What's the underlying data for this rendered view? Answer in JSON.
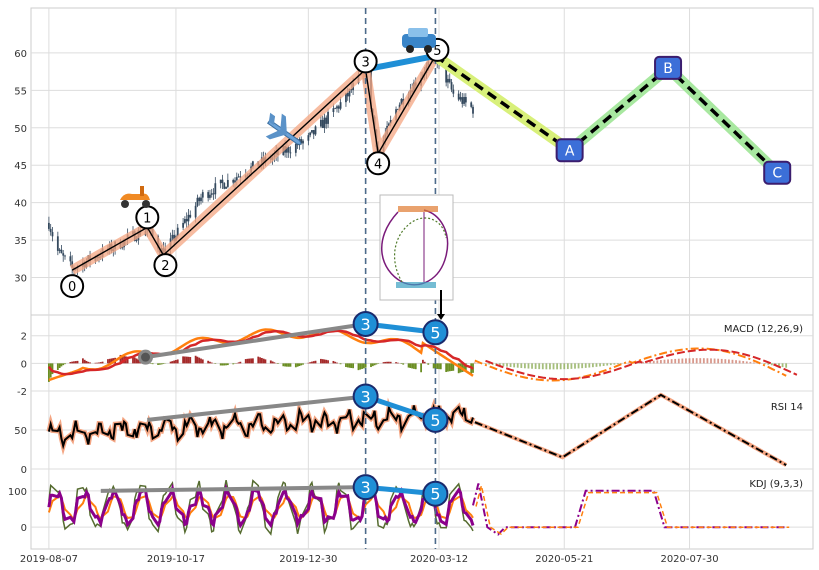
{
  "chart_data": {
    "type": "line",
    "panels": [
      {
        "id": "price",
        "type": "candlestick",
        "ylim": [
          25,
          66
        ],
        "yticks": [
          30,
          35,
          40,
          45,
          50,
          55,
          60
        ],
        "grid": true,
        "wave_points": [
          {
            "label": "0",
            "date": "2019-08-20",
            "value": 31
          },
          {
            "label": "1",
            "date": "2019-10-01",
            "value": 36.7
          },
          {
            "label": "2",
            "date": "2019-10-10",
            "value": 33
          },
          {
            "label": "3",
            "date": "2020-01-31",
            "value": 57.8
          },
          {
            "label": "4",
            "date": "2020-02-07",
            "value": 46.6
          },
          {
            "label": "5",
            "date": "2020-03-10",
            "value": 59.6
          }
        ],
        "projection_points": [
          {
            "label": "A",
            "date": "2020-05-24",
            "value": 47
          },
          {
            "label": "B",
            "date": "2020-07-18",
            "value": 58
          },
          {
            "label": "C",
            "date": "2020-09-17",
            "value": 44
          }
        ],
        "price_series": {
          "start": "2019-08-07",
          "end": "2020-03-31",
          "anchors": [
            [
              "2019-08-07",
              37.3
            ],
            [
              "2019-08-12",
              33.5
            ],
            [
              "2019-08-20",
              31.2
            ],
            [
              "2019-09-10",
              33.8
            ],
            [
              "2019-10-01",
              36.6
            ],
            [
              "2019-10-10",
              33.2
            ],
            [
              "2019-11-01",
              41
            ],
            [
              "2019-12-01",
              45
            ],
            [
              "2019-12-30",
              48.5
            ],
            [
              "2020-01-20",
              54
            ],
            [
              "2020-01-31",
              57.8
            ],
            [
              "2020-02-07",
              46.6
            ],
            [
              "2020-02-18",
              53
            ],
            [
              "2020-03-10",
              59.6
            ],
            [
              "2020-03-20",
              54.5
            ],
            [
              "2020-03-31",
              52.5
            ]
          ]
        }
      },
      {
        "id": "macd",
        "label": "MACD (12,26,9)",
        "ylim": [
          -2,
          3.5
        ],
        "yticks": [
          -2,
          0,
          2
        ],
        "pivots": [
          {
            "label": "3",
            "date": "2020-01-31",
            "value": 2.85
          },
          {
            "label": "5",
            "date": "2020-03-10",
            "value": 2.25
          }
        ],
        "trend_start": {
          "date": "2019-09-30",
          "value": 0.45
        }
      },
      {
        "id": "rsi",
        "label": "RSI 14",
        "ylim": [
          0,
          100
        ],
        "yticks": [
          0,
          50
        ],
        "pivots": [
          {
            "label": "3",
            "date": "2020-01-31",
            "value": 93
          },
          {
            "label": "5",
            "date": "2020-03-10",
            "value": 63
          }
        ],
        "trend_start": {
          "date": "2019-10-01",
          "value": 63
        },
        "projection": [
          [
            "2020-04-01",
            60
          ],
          [
            "2020-05-20",
            15
          ],
          [
            "2020-07-14",
            95
          ],
          [
            "2020-09-22",
            5
          ]
        ]
      },
      {
        "id": "kdj",
        "label": "KDJ (9,3,3)",
        "ylim": [
          -60,
          160
        ],
        "yticks": [
          0,
          100
        ],
        "pivots": [
          {
            "label": "3",
            "date": "2020-01-31",
            "value": 110
          },
          {
            "label": "5",
            "date": "2020-03-10",
            "value": 92
          }
        ],
        "trend_start": {
          "date": "2019-09-05",
          "value": 100
        }
      }
    ],
    "x_ticks": [
      "2019-08-07",
      "2019-10-17",
      "2019-12-30",
      "2020-03-12",
      "2020-05-21",
      "2020-07-30"
    ],
    "xlim": [
      "2019-07-28",
      "2020-10-07"
    ],
    "vertical_lines": [
      "2020-01-31",
      "2020-03-10"
    ],
    "colors": {
      "candle": "#34495e",
      "wave_highlight": "#f4a582",
      "wave_line": "#000000",
      "wave_last": "#1f8fd6",
      "projection_a": "#d8f07a",
      "projection_bc": "#a8e8a0",
      "projection_dash": "#000000",
      "label_box": "#3c6fd8",
      "macd_line": "#ff7f0e",
      "macd_signal": "#d62728",
      "hist_pos": "#a52a2a",
      "hist_neg": "#6b8e23",
      "rsi_line": "#000000",
      "rsi_halo": "#f4a582",
      "kdj_k": "#8b008b",
      "kdj_d": "#ff7f0e",
      "kdj_j": "#556b2f",
      "trend_gray": "#888888",
      "pivot_fill": "#1f8fd6",
      "vline": "#4c6a8a"
    },
    "icons": [
      "scooter-icon",
      "airplane-icon",
      "car-icon"
    ]
  }
}
